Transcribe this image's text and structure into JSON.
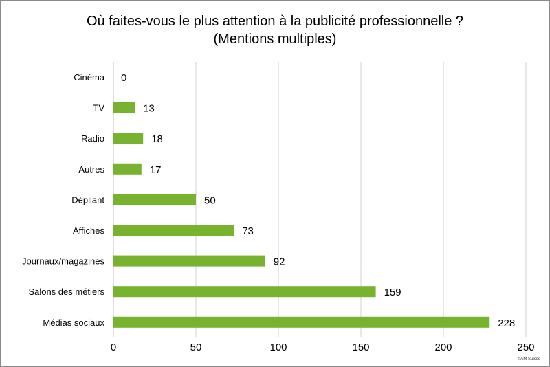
{
  "chart_data": {
    "type": "bar",
    "orientation": "horizontal",
    "title": "Où faites-vous le plus attention à la publicité professionnelle ?",
    "subtitle": "(Mentions multiples)",
    "categories": [
      "Cinéma",
      "TV",
      "Radio",
      "Autres",
      "Dépliant",
      "Affiches",
      "Journaux/magazines",
      "Salons des métiers",
      "Médias sociaux"
    ],
    "values": [
      0,
      13,
      18,
      17,
      50,
      73,
      92,
      159,
      228
    ],
    "xlim": [
      0,
      250
    ],
    "xticks": [
      0,
      50,
      100,
      150,
      200,
      250
    ],
    "grid": true,
    "legend": "none",
    "bar_color": "#77b32e",
    "grid_color": "#d0d0d0"
  },
  "credit": "©AM Suisse"
}
